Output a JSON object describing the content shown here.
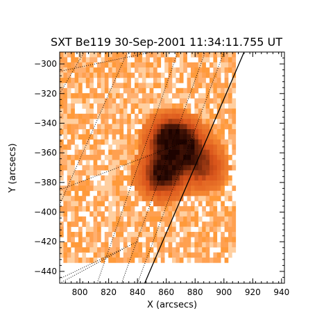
{
  "chart_data": {
    "type": "heatmap",
    "title": "SXT Be119 30-Sep-2001 11:34:11.755 UT",
    "xlabel": "X (arcsecs)",
    "ylabel": "Y (arcsecs)",
    "xlim": [
      786,
      942
    ],
    "ylim": [
      -448,
      -292
    ],
    "xticks": [
      800,
      820,
      840,
      860,
      880,
      900,
      920,
      940
    ],
    "yticks": [
      -440,
      -420,
      -400,
      -380,
      -360,
      -340,
      -320,
      -300
    ],
    "colormap": {
      "low": "#ff9a3a",
      "mid": "#d8521a",
      "high": "#1e0300",
      "missing": "#ffffff"
    },
    "image_extent": {
      "x": [
        786,
        908
      ],
      "y": [
        -433,
        -292
      ]
    },
    "bright_kernels": [
      {
        "x": 857,
        "y": -375,
        "intensity": 1.0
      },
      {
        "x": 862,
        "y": -350,
        "intensity": 0.9
      },
      {
        "x": 872,
        "y": -355,
        "intensity": 0.8
      },
      {
        "x": 886,
        "y": -370,
        "intensity": 0.6
      }
    ],
    "limb": [
      [
        845,
        -448
      ],
      [
        914,
        -292
      ]
    ],
    "grid_lines": [
      [
        [
          786,
          -395
        ],
        [
          833,
          -292
        ]
      ],
      [
        [
          786,
          -320
        ],
        [
          803,
          -292
        ]
      ],
      [
        [
          812,
          -448
        ],
        [
          868,
          -292
        ]
      ],
      [
        [
          829,
          -448
        ],
        [
          887,
          -292
        ]
      ],
      [
        [
          840,
          -448
        ],
        [
          900,
          -292
        ]
      ],
      [
        [
          786,
          -305
        ],
        [
          850,
          -292
        ]
      ],
      [
        [
          786,
          -385
        ],
        [
          880,
          -350
        ]
      ],
      [
        [
          786,
          -445
        ],
        [
          840,
          -420
        ]
      ],
      [
        [
          786,
          -448
        ],
        [
          830,
          -425
        ]
      ]
    ]
  }
}
